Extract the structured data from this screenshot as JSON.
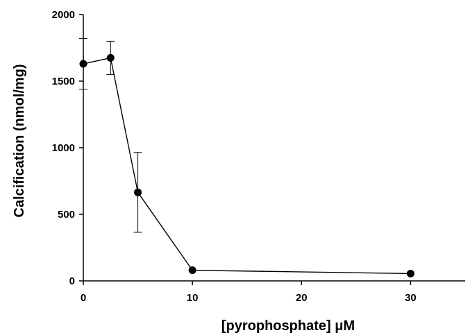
{
  "chart_data": {
    "type": "line",
    "title": "",
    "xlabel": "[pyrophosphate] μM",
    "ylabel": "Calcification (nmol/mg)",
    "xlim": [
      0,
      35
    ],
    "ylim": [
      0,
      2000
    ],
    "x_ticks": [
      0,
      10,
      20,
      30
    ],
    "y_ticks": [
      0,
      500,
      1000,
      1500,
      2000
    ],
    "x_tick_labels": [
      "0",
      "10",
      "20",
      "30"
    ],
    "y_tick_labels": [
      "0",
      "500",
      "1000",
      "1500",
      "2000"
    ],
    "grid": false,
    "legend": "none",
    "series": [
      {
        "x": [
          0,
          2.5,
          5,
          10,
          30
        ],
        "values": [
          1630,
          1675,
          665,
          80,
          55
        ],
        "error": [
          190,
          125,
          300,
          0,
          0
        ],
        "color": "#000000",
        "marker": "filled-circle"
      }
    ]
  }
}
